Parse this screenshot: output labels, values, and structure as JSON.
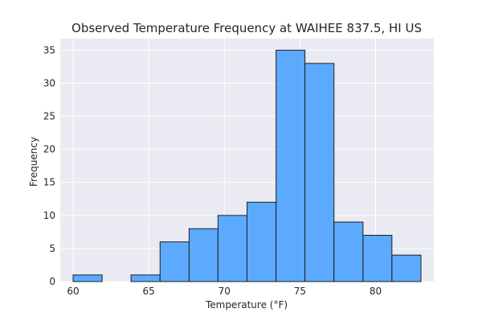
{
  "chart_data": {
    "type": "bar",
    "subtype": "histogram",
    "title": "Observed Temperature Frequency at WAIHEE 837.5, HI US",
    "xlabel": "Temperature (°F)",
    "ylabel": "Frequency",
    "xlim": [
      59.15,
      83.85
    ],
    "ylim": [
      0,
      36.75
    ],
    "xticks": [
      60,
      65,
      70,
      75,
      80
    ],
    "yticks": [
      0,
      5,
      10,
      15,
      20,
      25,
      30,
      35
    ],
    "bin_edges": [
      60.0,
      61.92,
      63.83,
      65.75,
      67.67,
      69.58,
      71.5,
      73.42,
      75.33,
      77.25,
      79.17,
      81.08,
      83.0
    ],
    "values": [
      1,
      0,
      1,
      6,
      8,
      10,
      12,
      35,
      33,
      9,
      7,
      4
    ],
    "grid": true,
    "colors": {
      "bar_fill": "#4da3ff",
      "bar_edge": "#1f1f1f",
      "plot_background": "#eaeaf2",
      "grid": "#ffffff"
    }
  }
}
